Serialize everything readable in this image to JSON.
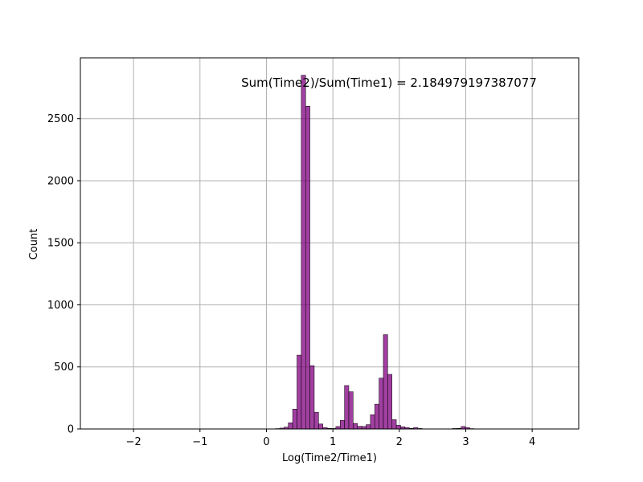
{
  "chart_data": {
    "type": "bar",
    "xlabel": "Log(Time2/Time1)",
    "ylabel": "Count",
    "annotation": "Sum(Time2)/Sum(Time1) = 2.184979197387077",
    "xlim": [
      -2.8,
      4.7
    ],
    "ylim": [
      0,
      2990
    ],
    "xticks": [
      -2,
      -1,
      0,
      1,
      2,
      3,
      4
    ],
    "xtick_labels": [
      "−2",
      "−1",
      "0",
      "1",
      "2",
      "3",
      "4"
    ],
    "yticks": [
      0,
      500,
      1000,
      1500,
      2000,
      2500
    ],
    "ytick_labels": [
      "0",
      "500",
      "1000",
      "1500",
      "2000",
      "2500"
    ],
    "grid": true,
    "bar_color": "#800080",
    "bin_width": 0.065,
    "bins": [
      {
        "x": 0.135,
        "count": 3
      },
      {
        "x": 0.2,
        "count": 7
      },
      {
        "x": 0.265,
        "count": 15
      },
      {
        "x": 0.33,
        "count": 50
      },
      {
        "x": 0.395,
        "count": 160
      },
      {
        "x": 0.46,
        "count": 595
      },
      {
        "x": 0.525,
        "count": 2850
      },
      {
        "x": 0.59,
        "count": 2600
      },
      {
        "x": 0.655,
        "count": 510
      },
      {
        "x": 0.72,
        "count": 135
      },
      {
        "x": 0.785,
        "count": 40
      },
      {
        "x": 0.85,
        "count": 12
      },
      {
        "x": 0.915,
        "count": 5
      },
      {
        "x": 0.98,
        "count": 4
      },
      {
        "x": 1.045,
        "count": 20
      },
      {
        "x": 1.11,
        "count": 70
      },
      {
        "x": 1.175,
        "count": 350
      },
      {
        "x": 1.24,
        "count": 300
      },
      {
        "x": 1.305,
        "count": 45
      },
      {
        "x": 1.37,
        "count": 22
      },
      {
        "x": 1.435,
        "count": 20
      },
      {
        "x": 1.5,
        "count": 35
      },
      {
        "x": 1.565,
        "count": 115
      },
      {
        "x": 1.63,
        "count": 200
      },
      {
        "x": 1.695,
        "count": 410
      },
      {
        "x": 1.76,
        "count": 760
      },
      {
        "x": 1.825,
        "count": 440
      },
      {
        "x": 1.89,
        "count": 75
      },
      {
        "x": 1.955,
        "count": 30
      },
      {
        "x": 2.02,
        "count": 18
      },
      {
        "x": 2.085,
        "count": 12
      },
      {
        "x": 2.15,
        "count": 5
      },
      {
        "x": 2.215,
        "count": 12
      },
      {
        "x": 2.28,
        "count": 4
      },
      {
        "x": 2.8,
        "count": 4
      },
      {
        "x": 2.865,
        "count": 5
      },
      {
        "x": 2.93,
        "count": 20
      },
      {
        "x": 2.995,
        "count": 12
      },
      {
        "x": 3.06,
        "count": 3
      }
    ]
  }
}
